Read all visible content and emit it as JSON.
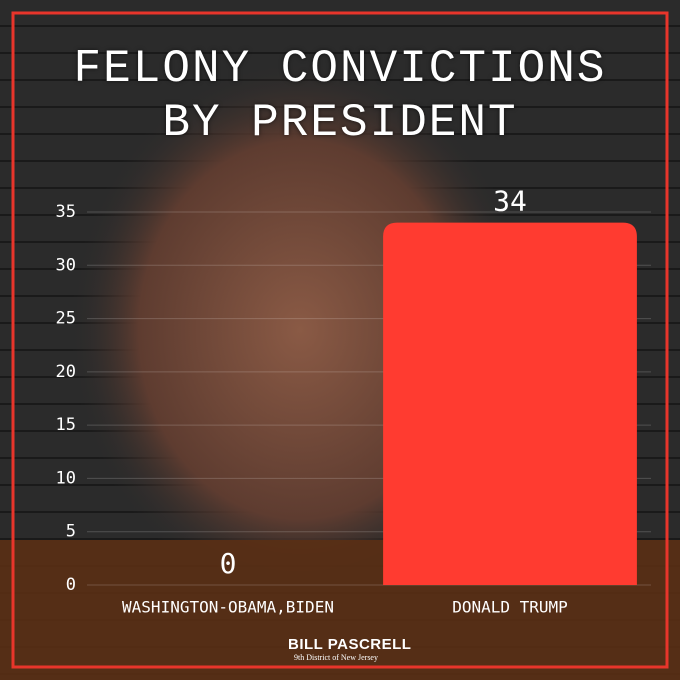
{
  "chart_data": {
    "type": "bar",
    "title": "FELONY CONVICTIONS BY PRESIDENT",
    "categories": [
      "WASHINGTON-OBAMA,BIDEN",
      "DONALD TRUMP"
    ],
    "values": [
      0,
      34
    ],
    "color": "#ff3b30",
    "ylim": [
      0,
      35
    ],
    "yticks": [
      0,
      5,
      10,
      15,
      20,
      25,
      30,
      35
    ],
    "grid": true
  },
  "logo": {
    "name": "BILL PASCRELL",
    "subtitle": "9th District of New Jersey"
  }
}
